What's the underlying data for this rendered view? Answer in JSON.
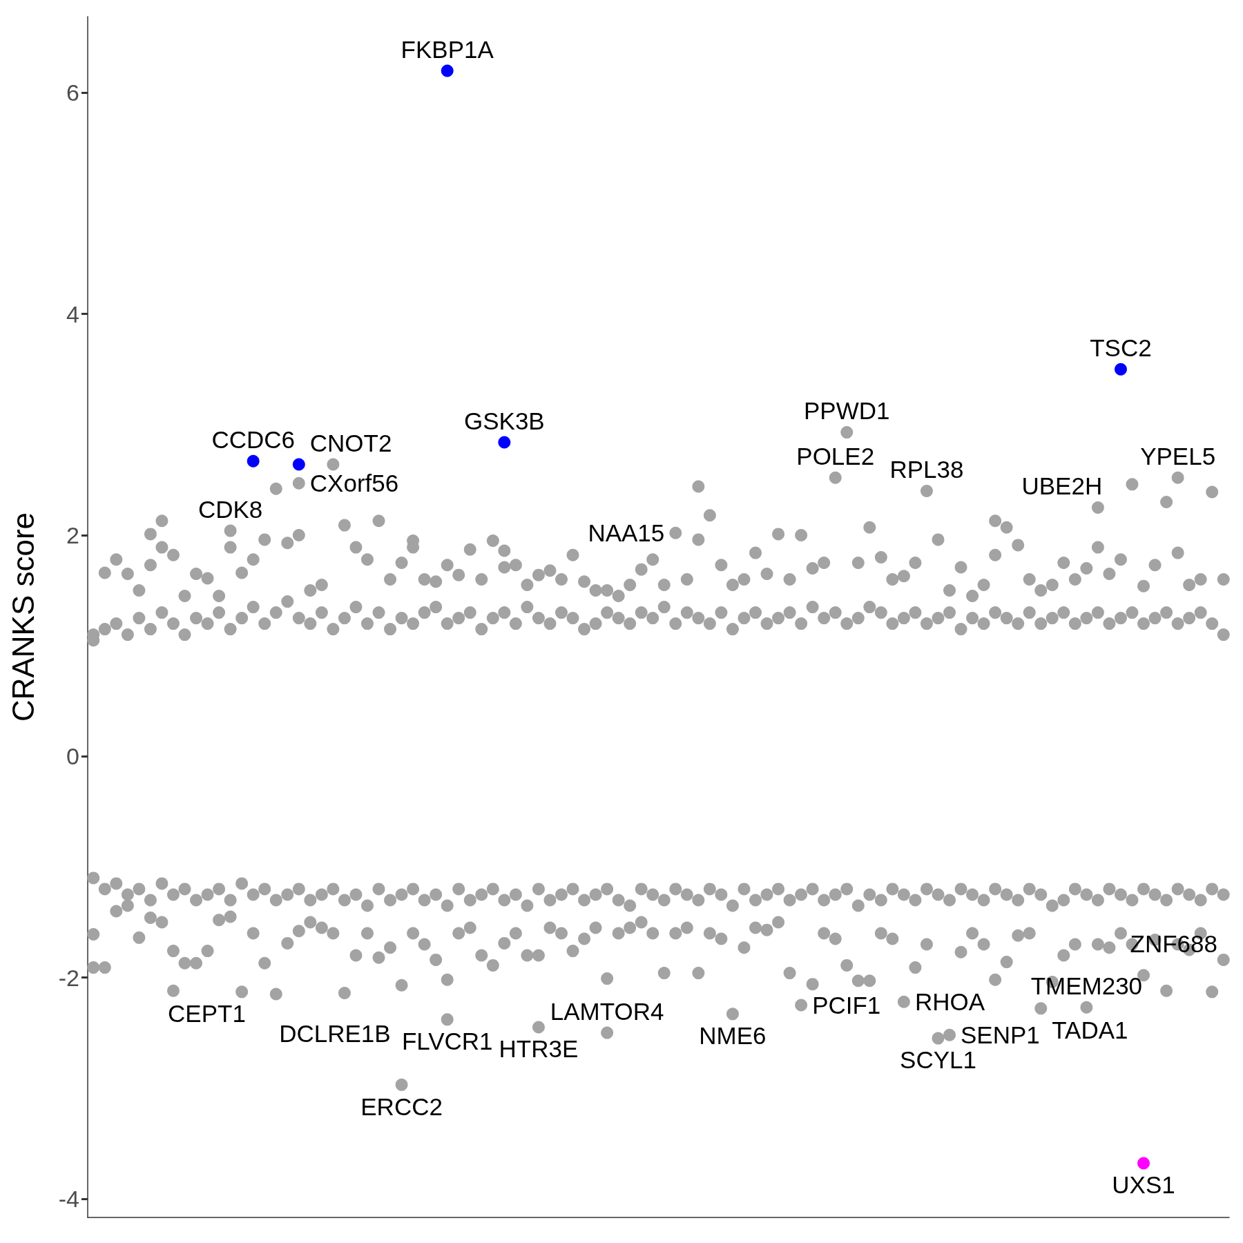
{
  "chart_data": {
    "type": "scatter",
    "ylabel": "CRANKS score",
    "categories": [
      null,
      null,
      null,
      null,
      null,
      null,
      null,
      null,
      null,
      null,
      null,
      null,
      null,
      null,
      null,
      null,
      null,
      null,
      null,
      null,
      null,
      null,
      null,
      null,
      null,
      null,
      null,
      null,
      null,
      null,
      null,
      null,
      null,
      null,
      null,
      null,
      null,
      null,
      null,
      null,
      null,
      null,
      null,
      null,
      null,
      null,
      null,
      null,
      null,
      null,
      null,
      null,
      null,
      null,
      null,
      null,
      null,
      null,
      null,
      null,
      null,
      null,
      null,
      null,
      null,
      null,
      null,
      null,
      null,
      null,
      null,
      null,
      null,
      null,
      null,
      null,
      null,
      null,
      null,
      null,
      null,
      null,
      null,
      null,
      null,
      null,
      null,
      null,
      null,
      null,
      null,
      null,
      null,
      null,
      null,
      null,
      null,
      null,
      null,
      null
    ],
    "ylim": [
      -4.17,
      6.69
    ],
    "yticks": [
      -4,
      -2,
      0,
      2,
      4,
      6
    ],
    "tick_labels": "y",
    "marker": "circle",
    "series": [
      {
        "color": "#a3a3a3",
        "values": [
          1.05,
          1.15,
          1.2,
          1.1,
          1.25,
          1.15,
          1.3,
          1.2,
          1.1,
          1.25,
          1.2,
          1.3,
          1.15,
          1.25,
          1.35,
          1.2,
          1.3,
          1.4,
          1.25,
          1.2,
          1.3,
          1.15,
          1.25,
          1.35,
          1.2,
          1.3,
          1.15,
          1.25,
          1.2,
          1.3,
          1.35,
          1.2,
          1.25,
          1.3,
          1.15,
          1.25,
          1.3,
          1.2,
          1.35,
          1.25,
          1.2,
          1.3,
          1.25,
          1.15,
          1.2,
          1.3,
          1.25,
          1.2,
          1.3,
          1.25,
          1.35,
          1.2,
          1.3,
          1.25,
          1.2,
          1.3,
          1.15,
          1.25,
          1.3,
          1.2,
          1.25,
          1.3,
          1.2,
          1.35,
          1.25,
          1.3,
          1.2,
          1.25,
          1.35,
          1.3,
          1.2,
          1.25,
          1.3,
          1.2,
          1.25,
          1.3,
          1.15,
          1.25,
          1.2,
          1.3,
          1.25,
          1.2,
          1.3,
          1.2,
          1.25,
          1.3,
          1.2,
          1.25,
          1.3,
          1.2,
          1.25,
          1.3,
          1.2,
          1.25,
          1.3,
          1.2,
          1.25,
          1.3,
          1.2,
          1.1
        ]
      },
      {
        "color": "#a3a3a3",
        "values": [
          -1.1,
          -1.2,
          -1.15,
          -1.25,
          -1.2,
          -1.3,
          -1.15,
          -1.25,
          -1.2,
          -1.3,
          -1.25,
          -1.2,
          -1.3,
          -1.15,
          -1.25,
          -1.2,
          -1.3,
          -1.25,
          -1.2,
          -1.3,
          -1.25,
          -1.2,
          -1.3,
          -1.25,
          -1.35,
          -1.2,
          -1.3,
          -1.25,
          -1.2,
          -1.3,
          -1.25,
          -1.35,
          -1.2,
          -1.3,
          -1.25,
          -1.2,
          -1.3,
          -1.25,
          -1.35,
          -1.2,
          -1.3,
          -1.25,
          -1.2,
          -1.3,
          -1.25,
          -1.2,
          -1.3,
          -1.35,
          -1.2,
          -1.25,
          -1.3,
          -1.2,
          -1.25,
          -1.3,
          -1.2,
          -1.25,
          -1.35,
          -1.2,
          -1.3,
          -1.25,
          -1.2,
          -1.3,
          -1.25,
          -1.2,
          -1.3,
          -1.25,
          -1.2,
          -1.35,
          -1.25,
          -1.3,
          -1.2,
          -1.25,
          -1.3,
          -1.2,
          -1.25,
          -1.3,
          -1.2,
          -1.25,
          -1.3,
          -1.2,
          -1.25,
          -1.3,
          -1.2,
          -1.25,
          -1.35,
          -1.3,
          -1.2,
          -1.25,
          -1.3,
          -1.2,
          -1.25,
          -1.3,
          -1.2,
          -1.25,
          -1.3,
          -1.2,
          -1.25,
          -1.3,
          -1.2,
          -1.25
        ]
      },
      {
        "color": "#a3a3a3",
        "values": [
          null,
          null,
          null,
          null,
          null,
          1.73,
          1.89,
          null,
          null,
          null,
          null,
          null,
          1.89,
          null,
          null,
          null,
          null,
          null,
          2.0,
          null,
          null,
          null,
          null,
          null,
          null,
          null,
          null,
          null,
          1.89,
          null,
          null,
          null,
          null,
          null,
          null,
          null,
          1.71,
          null,
          null,
          null,
          null,
          null,
          null,
          null,
          null,
          null,
          null,
          null,
          null,
          null,
          null,
          null,
          null,
          1.96,
          null,
          null,
          null,
          null,
          null,
          null,
          null,
          null,
          null,
          null,
          null,
          null,
          null,
          null,
          null,
          null,
          null,
          null,
          null,
          null,
          null,
          null,
          null,
          null,
          null,
          1.82,
          null,
          null,
          null,
          null,
          null,
          null,
          null,
          null,
          1.89,
          null,
          null,
          null,
          null,
          null,
          null,
          1.84,
          null,
          null,
          null,
          null
        ]
      },
      {
        "color": "#a3a3a3",
        "values": [
          -1.61,
          null,
          null,
          null,
          null,
          null,
          null,
          -1.76,
          null,
          null,
          null,
          null,
          null,
          null,
          null,
          null,
          null,
          null,
          null,
          null,
          null,
          null,
          null,
          null,
          null,
          null,
          null,
          -2.07,
          null,
          null,
          null,
          -2.02,
          null,
          null,
          null,
          null,
          null,
          null,
          null,
          -1.8,
          null,
          null,
          null,
          null,
          null,
          -2.01,
          null,
          null,
          null,
          null,
          null,
          null,
          null,
          null,
          null,
          null,
          null,
          null,
          null,
          null,
          null,
          null,
          null,
          null,
          null,
          null,
          null,
          null,
          null,
          null,
          null,
          null,
          null,
          null,
          null,
          null,
          null,
          null,
          null,
          null,
          null,
          null,
          null,
          null,
          null,
          null,
          null,
          null,
          null,
          null,
          null,
          null,
          null,
          null,
          null,
          null,
          null,
          null,
          null,
          null
        ],
        "value_labels": [
          null,
          null,
          null,
          null,
          null,
          null,
          null,
          null,
          null,
          null,
          null,
          null,
          null,
          null,
          null,
          null,
          null,
          null,
          null,
          null,
          null,
          null,
          null,
          null,
          null,
          null,
          null,
          "DCLRE1B",
          null,
          null,
          null,
          null,
          null,
          null,
          null,
          null,
          null,
          null,
          null,
          null,
          null,
          null,
          null,
          null,
          null,
          null,
          null,
          null,
          null,
          null,
          null,
          null,
          null,
          null,
          null,
          null,
          null,
          null,
          null,
          null,
          null,
          null,
          null,
          null,
          null,
          null,
          null,
          null,
          null,
          null,
          null,
          null,
          null,
          null,
          null,
          null,
          null,
          null,
          null,
          null,
          null,
          null,
          null,
          null,
          null,
          null,
          null,
          null,
          null,
          null,
          null,
          null,
          null,
          null,
          null,
          null,
          null,
          null,
          null,
          null
        ]
      },
      {
        "color": "#a3a3a3",
        "values": [
          1.1,
          1.66,
          1.78,
          1.65,
          1.5,
          2.01,
          2.13,
          1.82,
          1.45,
          1.65,
          1.61,
          1.45,
          2.04,
          1.66,
          1.78,
          1.96,
          2.42,
          1.93,
          2.47,
          1.5,
          1.55,
          2.64,
          2.09,
          1.89,
          1.78,
          2.13,
          1.6,
          1.75,
          1.95,
          1.6,
          1.58,
          1.73,
          1.64,
          1.87,
          1.6,
          1.95,
          1.86,
          1.73,
          1.55,
          1.64,
          1.68,
          1.6,
          1.82,
          1.58,
          1.5,
          1.5,
          1.45,
          1.55,
          1.69,
          1.78,
          1.55,
          2.02,
          1.6,
          2.44,
          2.18,
          1.73,
          1.55,
          1.6,
          1.84,
          1.65,
          2.01,
          1.6,
          2.0,
          1.7,
          1.75,
          2.52,
          2.93,
          1.75,
          2.07,
          1.8,
          1.6,
          1.63,
          1.75,
          2.4,
          1.96,
          1.5,
          1.71,
          1.45,
          1.55,
          2.13,
          2.07,
          1.91,
          1.6,
          1.5,
          1.55,
          1.75,
          1.6,
          1.7,
          2.25,
          1.65,
          1.78,
          2.46,
          1.54,
          1.73,
          2.3,
          2.52,
          1.55,
          1.6,
          2.39,
          1.6
        ],
        "value_labels": [
          null,
          null,
          null,
          null,
          null,
          null,
          null,
          null,
          null,
          null,
          null,
          null,
          "CDK8",
          null,
          null,
          null,
          null,
          null,
          "CXorf56",
          null,
          null,
          null,
          null,
          null,
          null,
          null,
          null,
          null,
          null,
          null,
          null,
          null,
          null,
          null,
          null,
          null,
          null,
          null,
          null,
          null,
          null,
          null,
          null,
          null,
          null,
          null,
          null,
          null,
          null,
          null,
          null,
          "NAA15",
          null,
          null,
          null,
          null,
          null,
          null,
          null,
          null,
          null,
          null,
          null,
          null,
          null,
          "POLE2",
          "PPWD1",
          null,
          null,
          null,
          null,
          null,
          null,
          "RPL38",
          null,
          null,
          null,
          null,
          null,
          null,
          null,
          null,
          null,
          null,
          null,
          null,
          null,
          null,
          "UBE2H",
          null,
          null,
          null,
          null,
          null,
          null,
          "YPEL5",
          null,
          null,
          null,
          null
        ]
      },
      {
        "color": "#a3a3a3",
        "values": [
          -1.91,
          -1.91,
          -1.4,
          -1.35,
          -1.64,
          -1.46,
          -1.5,
          -2.12,
          -1.87,
          -1.87,
          -1.76,
          -1.48,
          -1.45,
          -2.13,
          -1.6,
          -1.87,
          -2.15,
          -1.69,
          -1.58,
          -1.5,
          -1.55,
          -1.6,
          -2.14,
          -1.8,
          -1.6,
          -1.82,
          -1.73,
          -2.97,
          -1.6,
          -1.7,
          -1.84,
          -2.38,
          -1.6,
          -1.55,
          -1.8,
          -1.89,
          -1.69,
          -1.6,
          -1.8,
          -2.45,
          -1.55,
          -1.6,
          -1.76,
          -1.65,
          -1.55,
          -2.5,
          -1.6,
          -1.55,
          -1.5,
          -1.6,
          -1.96,
          -1.6,
          -1.55,
          -1.96,
          -1.6,
          -1.65,
          -2.33,
          -1.73,
          -1.55,
          -1.57,
          -1.5,
          -1.96,
          -2.25,
          -2.06,
          -1.6,
          -1.65,
          -1.89,
          -2.03,
          -2.03,
          -1.6,
          -1.65,
          -2.22,
          -1.91,
          -1.7,
          -2.55,
          -2.52,
          -1.77,
          -1.6,
          -1.7,
          -2.02,
          -1.86,
          -1.62,
          -1.6,
          -2.28,
          -2.04,
          -1.8,
          -1.7,
          -2.27,
          -1.7,
          -1.73,
          -1.6,
          -1.7,
          -1.98,
          -1.66,
          -2.12,
          -1.7,
          -1.75,
          -1.6,
          -2.13,
          -1.84
        ],
        "value_labels": [
          null,
          null,
          null,
          null,
          null,
          null,
          null,
          null,
          null,
          null,
          null,
          null,
          null,
          "CEPT1",
          null,
          null,
          null,
          null,
          null,
          null,
          null,
          null,
          null,
          null,
          null,
          null,
          null,
          "ERCC2",
          null,
          null,
          null,
          "FLVCR1",
          null,
          null,
          null,
          null,
          null,
          null,
          null,
          "HTR3E",
          null,
          null,
          null,
          null,
          null,
          "LAMTOR4",
          null,
          null,
          null,
          null,
          null,
          null,
          null,
          null,
          null,
          null,
          "NME6",
          null,
          null,
          null,
          null,
          null,
          "PCIF1",
          null,
          null,
          null,
          null,
          null,
          null,
          null,
          null,
          "RHOA",
          null,
          null,
          "SCYL1",
          "SENP1",
          null,
          null,
          null,
          null,
          null,
          null,
          null,
          "TADA1",
          null,
          null,
          null,
          "TMEM230",
          null,
          null,
          null,
          null,
          null,
          null,
          null,
          null,
          null,
          null,
          "ZNF688",
          null
        ]
      },
      {
        "color": "#0000ff",
        "values": [
          null,
          null,
          null,
          null,
          null,
          null,
          null,
          null,
          null,
          null,
          null,
          null,
          null,
          null,
          2.67,
          null,
          null,
          null,
          2.64,
          null,
          null,
          null,
          null,
          null,
          null,
          null,
          null,
          null,
          null,
          null,
          null,
          6.2,
          null,
          null,
          null,
          null,
          2.84,
          null,
          null,
          null,
          null,
          null,
          null,
          null,
          null,
          null,
          null,
          null,
          null,
          null,
          null,
          null,
          null,
          null,
          null,
          null,
          null,
          null,
          null,
          null,
          null,
          null,
          null,
          null,
          null,
          null,
          null,
          null,
          null,
          null,
          null,
          null,
          null,
          null,
          null,
          null,
          null,
          null,
          null,
          null,
          null,
          null,
          null,
          null,
          null,
          null,
          null,
          null,
          null,
          null,
          3.5,
          null,
          null,
          null,
          null,
          null,
          null,
          null,
          null,
          null
        ],
        "value_labels": [
          null,
          null,
          null,
          null,
          null,
          null,
          null,
          null,
          null,
          null,
          null,
          null,
          null,
          null,
          "CCDC6",
          null,
          null,
          null,
          "CNOT2",
          null,
          null,
          null,
          null,
          null,
          null,
          null,
          null,
          null,
          null,
          null,
          null,
          "FKBP1A",
          null,
          null,
          null,
          null,
          "GSK3B",
          null,
          null,
          null,
          null,
          null,
          null,
          null,
          null,
          null,
          null,
          null,
          null,
          null,
          null,
          null,
          null,
          null,
          null,
          null,
          null,
          null,
          null,
          null,
          null,
          null,
          null,
          null,
          null,
          null,
          null,
          null,
          null,
          null,
          null,
          null,
          null,
          null,
          null,
          null,
          null,
          null,
          null,
          null,
          null,
          null,
          null,
          null,
          null,
          null,
          null,
          null,
          null,
          null,
          "TSC2",
          null,
          null,
          null,
          null,
          null,
          null,
          null,
          null,
          null
        ]
      },
      {
        "color": "#ff00ff",
        "values": [
          null,
          null,
          null,
          null,
          null,
          null,
          null,
          null,
          null,
          null,
          null,
          null,
          null,
          null,
          null,
          null,
          null,
          null,
          null,
          null,
          null,
          null,
          null,
          null,
          null,
          null,
          null,
          null,
          null,
          null,
          null,
          null,
          null,
          null,
          null,
          null,
          null,
          null,
          null,
          null,
          null,
          null,
          null,
          null,
          null,
          null,
          null,
          null,
          null,
          null,
          null,
          null,
          null,
          null,
          null,
          null,
          null,
          null,
          null,
          null,
          null,
          null,
          null,
          null,
          null,
          null,
          null,
          null,
          null,
          null,
          null,
          null,
          null,
          null,
          null,
          null,
          null,
          null,
          null,
          null,
          null,
          null,
          null,
          null,
          null,
          null,
          null,
          null,
          null,
          null,
          null,
          null,
          -3.68,
          null,
          null,
          null,
          null,
          null,
          null,
          null
        ],
        "value_labels": [
          null,
          null,
          null,
          null,
          null,
          null,
          null,
          null,
          null,
          null,
          null,
          null,
          null,
          null,
          null,
          null,
          null,
          null,
          null,
          null,
          null,
          null,
          null,
          null,
          null,
          null,
          null,
          null,
          null,
          null,
          null,
          null,
          null,
          null,
          null,
          null,
          null,
          null,
          null,
          null,
          null,
          null,
          null,
          null,
          null,
          null,
          null,
          null,
          null,
          null,
          null,
          null,
          null,
          null,
          null,
          null,
          null,
          null,
          null,
          null,
          null,
          null,
          null,
          null,
          null,
          null,
          null,
          null,
          null,
          null,
          null,
          null,
          null,
          null,
          null,
          null,
          null,
          null,
          null,
          null,
          null,
          null,
          null,
          null,
          null,
          null,
          null,
          null,
          null,
          null,
          null,
          null,
          "UXS1",
          null,
          null,
          null,
          null,
          null,
          null,
          null
        ]
      }
    ]
  }
}
